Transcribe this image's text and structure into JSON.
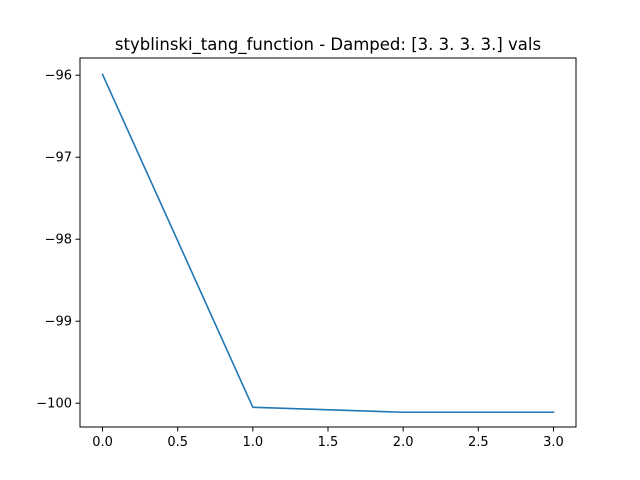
{
  "chart_data": {
    "type": "line",
    "title": "styblinski_tang_function - Damped: [3. 3. 3. 3.] vals",
    "xlabel": "",
    "ylabel": "",
    "xlim": [
      -0.15,
      3.15
    ],
    "ylim": [
      -100.29,
      -95.79
    ],
    "xticks": [
      0.0,
      0.5,
      1.0,
      1.5,
      2.0,
      2.5,
      3.0
    ],
    "xtick_labels": [
      "0.0",
      "0.5",
      "1.0",
      "1.5",
      "2.0",
      "2.5",
      "3.0"
    ],
    "yticks": [
      -96,
      -97,
      -98,
      -99,
      -100
    ],
    "ytick_labels": [
      "−96",
      "−97",
      "−98",
      "−99",
      "−100"
    ],
    "grid": false,
    "series": [
      {
        "color": "#1f77b4",
        "x": [
          0,
          1,
          2,
          3
        ],
        "y": [
          -95.99,
          -100.05,
          -100.11,
          -100.11
        ]
      }
    ]
  }
}
